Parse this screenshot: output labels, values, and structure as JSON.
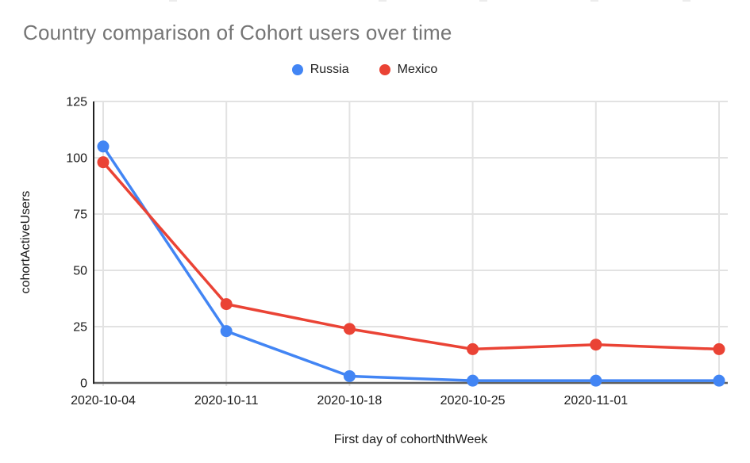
{
  "header": {
    "title": "Country comparison of Cohort users over time",
    "title_color": "#757575"
  },
  "legend": {
    "items": [
      {
        "label": "Russia",
        "color": "#4285F4"
      },
      {
        "label": "Mexico",
        "color": "#EA4335"
      }
    ]
  },
  "chart_data": {
    "type": "line",
    "title": "Country comparison of Cohort users over time",
    "xlabel": "First day of cohortNthWeek",
    "ylabel": "cohortActiveUsers",
    "categories": [
      "2020-10-04",
      "2020-10-11",
      "2020-10-18",
      "2020-10-25",
      "2020-11-01",
      ""
    ],
    "series": [
      {
        "name": "Russia",
        "color": "#4285F4",
        "values": [
          105,
          23,
          3,
          1,
          1,
          1
        ]
      },
      {
        "name": "Mexico",
        "color": "#EA4335",
        "values": [
          98,
          35,
          24,
          15,
          17,
          15
        ]
      }
    ],
    "ylim": [
      0,
      125
    ],
    "yticks": [
      0,
      25,
      50,
      75,
      100,
      125
    ],
    "grid": true,
    "legend_position": "top"
  },
  "axis_colors": {
    "grid": "#e2e2e2",
    "y_axis": "#222222",
    "x_axis": "#5f5f5f",
    "tick_label": "#1a1a1a",
    "axis_title": "#1a1a1a"
  }
}
